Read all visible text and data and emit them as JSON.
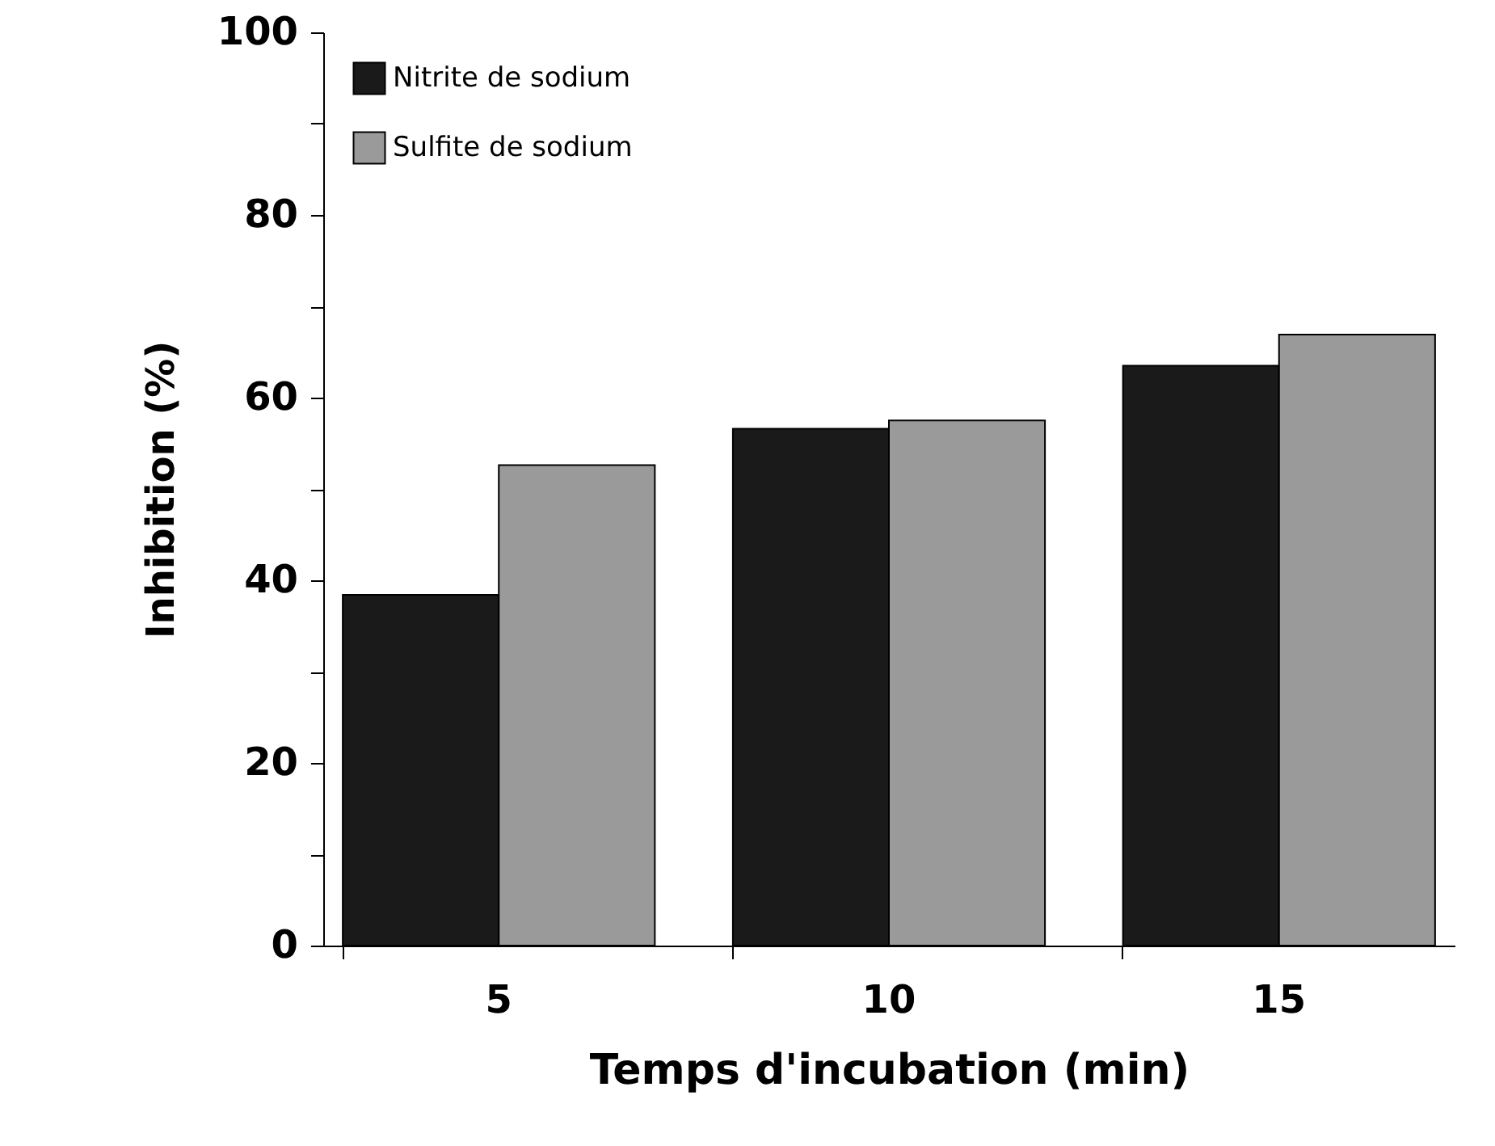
{
  "chart_data": {
    "type": "bar",
    "xlabel": "Temps  d'incubation  (min)",
    "ylabel": "Inhibition (%)",
    "categories": [
      "5",
      "10",
      "15"
    ],
    "series": [
      {
        "name": "Nitrite de sodium",
        "color": "#1a1a1a",
        "values": [
          38.4,
          56.6,
          63.5
        ]
      },
      {
        "name": "Sulfite de sodium",
        "color": "#9a9a9a",
        "values": [
          52.6,
          57.5,
          66.9
        ]
      }
    ],
    "ylim": [
      0,
      100
    ],
    "yticks": [
      0,
      {
        "value": 10,
        "label": null
      },
      20,
      {
        "value": 30,
        "label": null
      },
      40,
      {
        "value": 50,
        "label": null
      },
      60,
      {
        "value": 70,
        "label": null
      },
      80,
      {
        "value": 90,
        "label": null
      },
      100
    ],
    "grid": false,
    "legend": "top left"
  }
}
